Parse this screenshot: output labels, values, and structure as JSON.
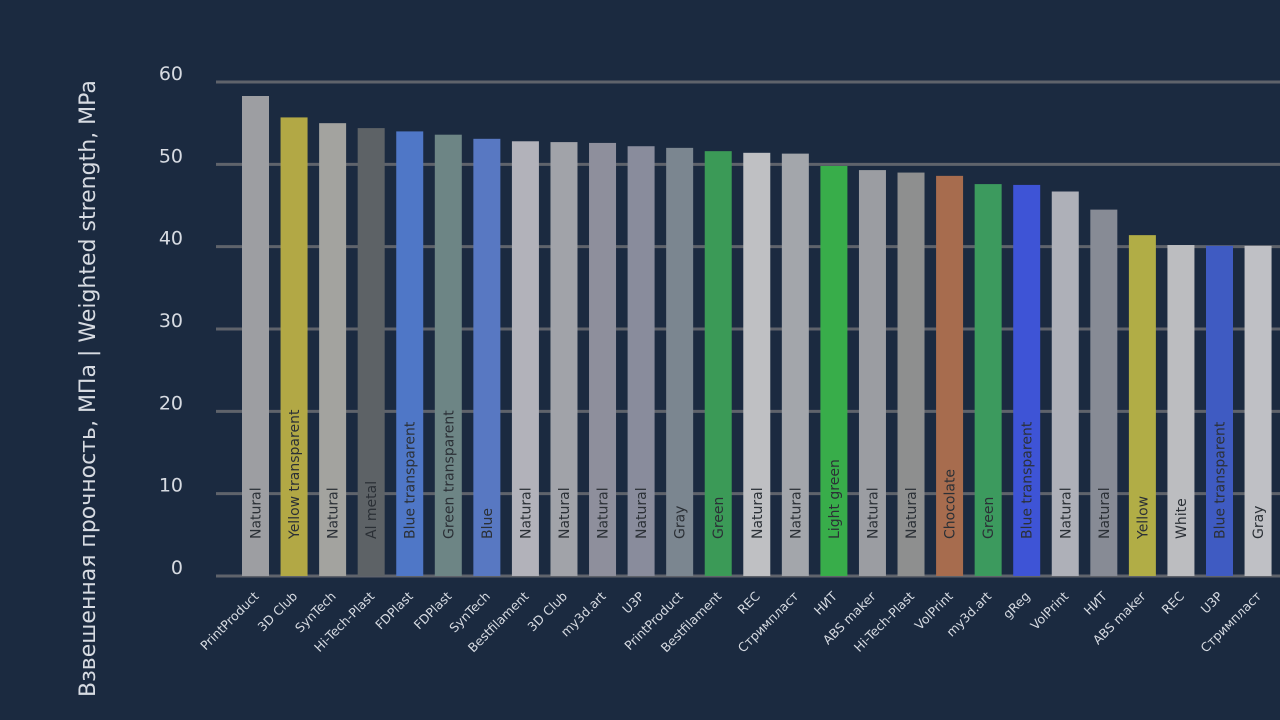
{
  "colors": {
    "background": "#1b2a40",
    "gridline": "#5f636b",
    "text": "#d7dbe2",
    "bar_label": "#2b3036"
  },
  "chart_data": {
    "type": "bar",
    "ylabel": "Взвешенная прочность, МПа | Weighted strength, MPa",
    "ylim": [
      0,
      60
    ],
    "yticks": [
      0,
      10,
      20,
      30,
      40,
      50,
      60
    ],
    "grid": true,
    "categories": [
      "PrintProduct",
      "3D Club",
      "SynTech",
      "Hi-Tech-Plast",
      "FDPlast",
      "FDPlast",
      "SynTech",
      "Bestfilament",
      "3D Club",
      "my3d.art",
      "U3P",
      "PrintProduct",
      "Bestfilament",
      "REC",
      "Стримпласт",
      "НИТ",
      "ABS maker",
      "Hi-Tech-Plast",
      "VolPrint",
      "my3d.art",
      "gReg",
      "VolPrint",
      "НИТ",
      "ABS maker",
      "REC",
      "U3P",
      "Стримпласт"
    ],
    "bar_labels": [
      "Natural",
      "Yellow transparent",
      "Natural",
      "Al metal",
      "Blue transparent",
      "Green transparent",
      "Blue",
      "Natural",
      "Natural",
      "Natural",
      "Natural",
      "Gray",
      "Green",
      "Natural",
      "Natural",
      "Light green",
      "Natural",
      "Natural",
      "Chocolate",
      "Green",
      "Blue transparent",
      "Natural",
      "Natural",
      "Yellow",
      "White",
      "Blue transparent",
      "Gray"
    ],
    "values": [
      58.3,
      55.7,
      55.0,
      54.4,
      54.0,
      53.6,
      53.1,
      52.8,
      52.7,
      52.6,
      52.2,
      52.0,
      51.6,
      51.4,
      51.3,
      49.8,
      49.3,
      49.0,
      48.6,
      47.6,
      47.5,
      46.7,
      44.5,
      41.4,
      40.2,
      40.1,
      40.1
    ],
    "bar_colors": [
      "#9d9ea2",
      "#b2a845",
      "#a3a39f",
      "#5d6266",
      "#4f77c7",
      "#6d8585",
      "#5878c2",
      "#b2b2ba",
      "#a1a3a9",
      "#8e8f9c",
      "#898c9c",
      "#7b8690",
      "#3b9a57",
      "#bfc0c3",
      "#a3a6ab",
      "#38ad4a",
      "#9b9da2",
      "#8e8f8f",
      "#a76c4e",
      "#3c9a5e",
      "#3e54d6",
      "#aeb0b8",
      "#878b95",
      "#b1ad46",
      "#bcbdc0",
      "#3f5bc2",
      "#bfc0c5"
    ]
  }
}
